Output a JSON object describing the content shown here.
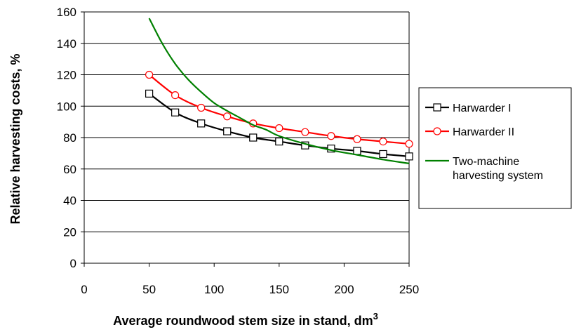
{
  "chart_data": {
    "type": "line",
    "title": "",
    "xlabel": "Average roundwood stem size in stand, dm",
    "xlabel_superscript": "3",
    "ylabel": "Relative harvesting costs, %",
    "xlim": [
      0,
      250
    ],
    "ylim": [
      0,
      160
    ],
    "xticks": [
      0,
      50,
      100,
      150,
      200,
      250
    ],
    "yticks": [
      0,
      20,
      40,
      60,
      80,
      100,
      120,
      140,
      160
    ],
    "grid": "horizontal",
    "legend": "right",
    "series": [
      {
        "name": "Harwarder I",
        "color": "#000000",
        "marker": "square",
        "x": [
          50,
          70,
          90,
          110,
          130,
          150,
          170,
          190,
          210,
          230,
          250
        ],
        "y": [
          108,
          96,
          89,
          84,
          80,
          77.5,
          75,
          73,
          71.5,
          69.5,
          68
        ]
      },
      {
        "name": "Harwarder II",
        "color": "#ff0000",
        "marker": "circle",
        "x": [
          50,
          70,
          90,
          110,
          130,
          150,
          170,
          190,
          210,
          230,
          250
        ],
        "y": [
          120,
          107,
          99,
          93.5,
          89,
          86,
          83.5,
          81,
          79,
          77.5,
          76
        ]
      },
      {
        "name": "Two-machine harvesting system",
        "name_lines": [
          "Two-machine",
          "harvesting system"
        ],
        "color": "#008000",
        "marker": "none",
        "x": [
          50,
          60,
          70,
          80,
          90,
          100,
          110,
          120,
          130,
          140,
          150,
          170,
          190,
          210,
          230,
          250
        ],
        "y": [
          156,
          140,
          127,
          117,
          109,
          102,
          97,
          92.5,
          88,
          85,
          81,
          76,
          72,
          69,
          66,
          63.5
        ]
      }
    ]
  }
}
